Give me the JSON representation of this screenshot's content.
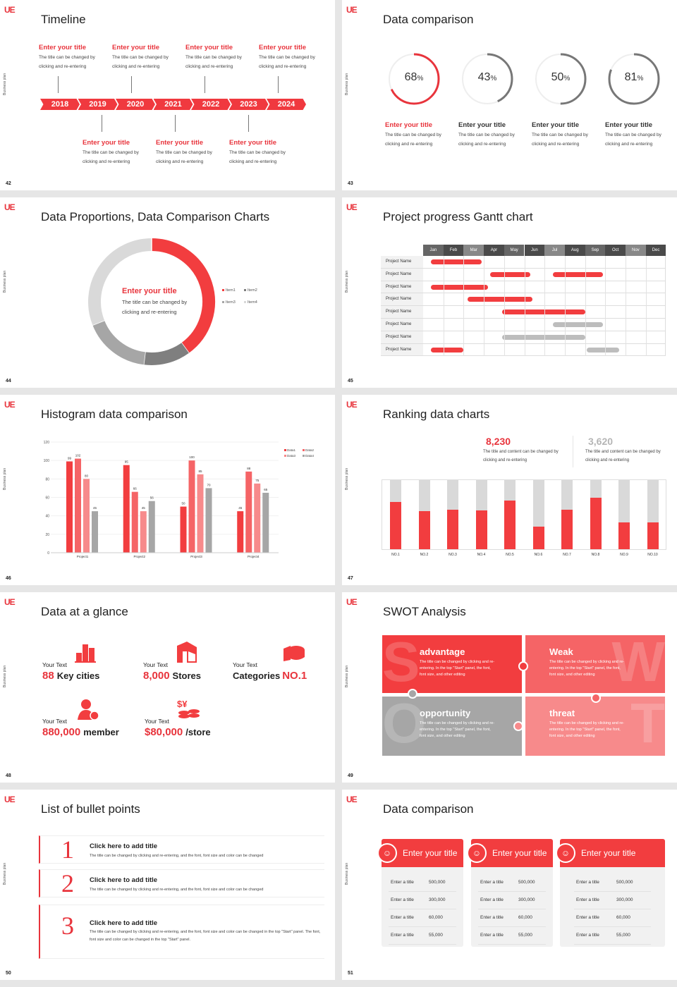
{
  "common": {
    "logo": "UE",
    "side_label": "Business plan",
    "accent": "#e8343c",
    "gray": "#a6a6a6"
  },
  "slides": [
    {
      "page": "42",
      "title": "Timeline",
      "years": [
        "2018",
        "2019",
        "2020",
        "2021",
        "2022",
        "2023",
        "2024"
      ],
      "events": [
        {
          "year": "2018",
          "pos": "top",
          "title": "Enter your title",
          "text": "The title can be changed by clicking and re-entering"
        },
        {
          "year": "2019",
          "pos": "bottom",
          "title": "Enter your title",
          "text": "The title can be changed by clicking and re-entering"
        },
        {
          "year": "2020",
          "pos": "top",
          "title": "Enter your title",
          "text": "The title can be changed by clicking and re-entering"
        },
        {
          "year": "2021",
          "pos": "bottom",
          "title": "Enter your title",
          "text": "The title can be changed by clicking and re-entering"
        },
        {
          "year": "2022",
          "pos": "top",
          "title": "Enter your title",
          "text": "The title can be changed by clicking and re-entering"
        },
        {
          "year": "2023",
          "pos": "bottom",
          "title": "Enter your title",
          "text": "The title can be changed by clicking and re-entering"
        },
        {
          "year": "2024",
          "pos": "top",
          "title": "Enter your title",
          "text": "The title can be changed by clicking and re-entering"
        }
      ]
    },
    {
      "page": "43",
      "title": "Data comparison",
      "items": [
        {
          "value": 68,
          "unit": "%",
          "highlight": true,
          "title": "Enter your title",
          "text": "The title can be changed by clicking and re-entering"
        },
        {
          "value": 43,
          "unit": "%",
          "highlight": false,
          "title": "Enter your title",
          "text": "The title can be changed by clicking and re-entering"
        },
        {
          "value": 50,
          "unit": "%",
          "highlight": false,
          "title": "Enter your title",
          "text": "The title can be changed by clicking and re-entering"
        },
        {
          "value": 81,
          "unit": "%",
          "highlight": false,
          "title": "Enter your title",
          "text": "The title can be changed by clicking and re-entering"
        }
      ]
    },
    {
      "page": "44",
      "title": "Data Proportions, Data Comparison Charts",
      "center_title": "Enter your title",
      "center_text": "The title can be changed by clicking and re-entering"
    },
    {
      "page": "45",
      "title": "Project progress Gantt chart"
    },
    {
      "page": "46",
      "title": "Histogram data comparison"
    },
    {
      "page": "47",
      "title": "Ranking data charts",
      "stats": [
        {
          "value": "8,230",
          "text": "The title and content can be changed by clicking and re-entering",
          "color": "#e8343c"
        },
        {
          "value": "3,620",
          "text": "The title and content can be changed by clicking and re-entering",
          "color": "#b5b5b5"
        }
      ]
    },
    {
      "page": "48",
      "title": "Data at a glance",
      "items": [
        {
          "label": "Your Text",
          "value": "88",
          "unit": "Key cities",
          "icon": "city-icon"
        },
        {
          "label": "Your Text",
          "value": "8,000",
          "unit": "Stores",
          "icon": "store-icon"
        },
        {
          "label": "Your Text",
          "prefix": "Categories",
          "value": "NO.1",
          "icon": "pie-chart-icon"
        },
        {
          "label": "Your Text",
          "value": "880,000",
          "unit": "member",
          "icon": "user-add-icon"
        },
        {
          "label": "Your Text",
          "value": "$80,000",
          "unit": "/store",
          "icon": "coins-icon"
        }
      ]
    },
    {
      "page": "49",
      "title": "SWOT Analysis",
      "quadrants": [
        {
          "letter": "S",
          "title": "advantage",
          "text": "The title can be changed by clicking and re-entering. In the top \"Start\" panel, the font, font size, and other editing",
          "color": "#f23d3f"
        },
        {
          "letter": "W",
          "title": "Weak",
          "text": "The title can be changed by clicking and re-entering. In the top \"Start\" panel, the font, font size, and other editing",
          "color": "#f56466"
        },
        {
          "letter": "O",
          "title": "opportunity",
          "text": "The title can be changed by clicking and re-entering. In the top \"Start\" panel, the font, font size, and other editing",
          "color": "#a6a6a6"
        },
        {
          "letter": "T",
          "title": "threat",
          "text": "The title can be changed by clicking and re-entering. In the top \"Start\" panel, the font, font size, and other editing",
          "color": "#f78a8b"
        }
      ]
    },
    {
      "page": "50",
      "title": "List of bullet points",
      "items": [
        {
          "num": "1",
          "title": "Click here to add title",
          "text": "The title can be changed by clicking and re-entering, and the font, font size and color can be changed"
        },
        {
          "num": "2",
          "title": "Click here to add title",
          "text": "The title can be changed by clicking and re-entering, and the font, font size and color can be changed"
        },
        {
          "num": "3",
          "title": "Click here to add title",
          "text": "The title can be changed by clicking and re-entering, and the font, font size and color can be changed in the top \"Start\" panel. The font, font size and color can be changed in the top \"Start\" panel."
        }
      ]
    },
    {
      "page": "51",
      "title": "Data comparison",
      "cards": [
        {
          "title": "Enter your title",
          "icon": "phone-user-icon",
          "rows": [
            [
              "Enter a title",
              "500,000"
            ],
            [
              "Enter a title",
              "300,000"
            ],
            [
              "Enter a title",
              "60,000"
            ],
            [
              "Enter a title",
              "55,000"
            ]
          ]
        },
        {
          "title": "Enter your title",
          "icon": "user-info-icon",
          "rows": [
            [
              "Enter a title",
              "500,000"
            ],
            [
              "Enter a title",
              "300,000"
            ],
            [
              "Enter a title",
              "60,000"
            ],
            [
              "Enter a title",
              "55,000"
            ]
          ]
        },
        {
          "title": "Enter your title",
          "icon": "users-icon",
          "rows": [
            [
              "Enter a title",
              "500,000"
            ],
            [
              "Enter a title",
              "300,000"
            ],
            [
              "Enter a title",
              "60,000"
            ],
            [
              "Enter a title",
              "55,000"
            ]
          ]
        }
      ]
    }
  ],
  "chart_data": [
    {
      "type": "pie",
      "variant": "donut",
      "categories": [
        "Item1",
        "Item2",
        "Item3",
        "Item4"
      ],
      "values": [
        40,
        12,
        17,
        31
      ],
      "colors": [
        "#f23d3f",
        "#7f7f7f",
        "#a6a6a6",
        "#d9d9d9"
      ],
      "legend": "right"
    },
    {
      "type": "gantt",
      "months": [
        "Jan",
        "Feb",
        "Mar",
        "Apr",
        "May",
        "Jun",
        "Jul",
        "Aug",
        "Sep",
        "Oct",
        "Nov",
        "Dec"
      ],
      "rows": [
        {
          "name": "Project Name",
          "bars": [
            {
              "start": 0.4,
              "end": 2.9,
              "color": "red"
            }
          ]
        },
        {
          "name": "Project Name",
          "bars": [
            {
              "start": 3.3,
              "end": 5.3,
              "color": "red"
            },
            {
              "start": 6.4,
              "end": 8.9,
              "color": "red"
            }
          ]
        },
        {
          "name": "Project Name",
          "bars": [
            {
              "start": 0.4,
              "end": 3.2,
              "color": "red"
            }
          ]
        },
        {
          "name": "Project Name",
          "bars": [
            {
              "start": 2.2,
              "end": 5.4,
              "color": "red"
            }
          ]
        },
        {
          "name": "Project Name",
          "bars": [
            {
              "start": 3.9,
              "end": 8.0,
              "color": "red"
            }
          ]
        },
        {
          "name": "Project Name",
          "bars": [
            {
              "start": 6.4,
              "end": 8.9,
              "color": "gray"
            }
          ]
        },
        {
          "name": "Project Name",
          "bars": [
            {
              "start": 3.9,
              "end": 8.0,
              "color": "gray"
            }
          ]
        },
        {
          "name": "Project Name",
          "bars": [
            {
              "start": 0.4,
              "end": 2.0,
              "color": "red"
            },
            {
              "start": 8.1,
              "end": 9.7,
              "color": "gray"
            }
          ]
        }
      ]
    },
    {
      "type": "bar",
      "categories": [
        "Project1",
        "Project2",
        "Project3",
        "Project4"
      ],
      "series": [
        {
          "name": "Data1",
          "values": [
            99,
            95,
            50,
            45
          ],
          "color": "#f23d3f"
        },
        {
          "name": "Data2",
          "values": [
            102,
            66,
            100,
            88
          ],
          "color": "#f56466"
        },
        {
          "name": "Data3",
          "values": [
            80,
            45,
            85,
            75
          ],
          "color": "#f78a8b"
        },
        {
          "name": "Data4",
          "values": [
            45,
            56,
            70,
            65
          ],
          "color": "#a6a6a6"
        }
      ],
      "ylim": [
        0,
        120
      ],
      "yticks": [
        "0",
        "20",
        "40",
        "60",
        "80",
        "100",
        "120"
      ],
      "legend": "top-right",
      "grid": true,
      "data_labels": true
    },
    {
      "type": "bar",
      "variant": "stacked-percent",
      "categories": [
        "NO.1",
        "NO.2",
        "NO.3",
        "NO.4",
        "NO.5",
        "NO.6",
        "NO.7",
        "NO.8",
        "NO.9",
        "NO.10"
      ],
      "values": [
        68,
        55,
        57,
        56,
        70,
        33,
        57,
        75,
        39,
        39
      ],
      "ylim": [
        0,
        100
      ]
    }
  ]
}
